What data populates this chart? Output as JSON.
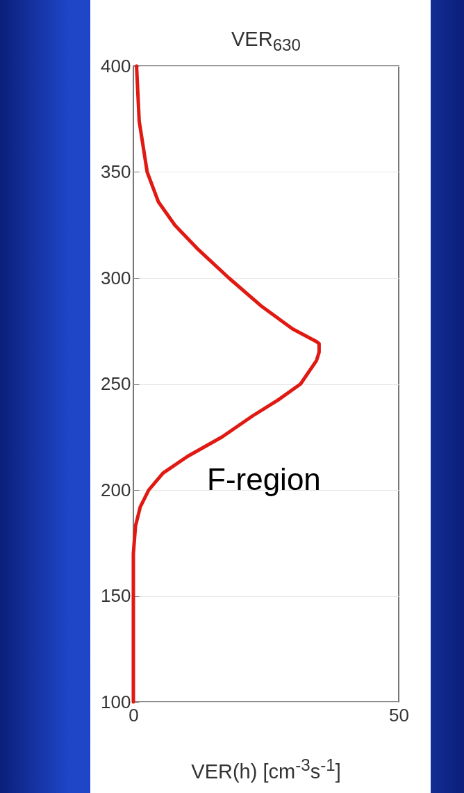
{
  "chart_data": {
    "type": "line",
    "title": "VER$_{630}$",
    "xlabel": "VER(h) [cm$^{-3}$s$^{-1}$]",
    "x": [
      0,
      0,
      0.4,
      1.3,
      2.9,
      5.6,
      10.3,
      16.7,
      22.5,
      27.3,
      31.5,
      34.5,
      35,
      35,
      34.5,
      30,
      24,
      18,
      12,
      7.8,
      4.7,
      2.6,
      1.1,
      0.6
    ],
    "series": [
      {
        "color": "#e01a12",
        "values": [
          100,
          170,
          183,
          192,
          200,
          208,
          216,
          225,
          235,
          242.5,
          250,
          261,
          265,
          269,
          270,
          276,
          287,
          300,
          314,
          325,
          336,
          350,
          374,
          400
        ]
      }
    ],
    "annotations": [
      "F-region"
    ],
    "xlim": [
      0,
      50
    ],
    "xticks": [
      0,
      50
    ],
    "ylim": [
      100,
      400
    ],
    "yticks": [
      100,
      150,
      200,
      250,
      300,
      350,
      400
    ],
    "grid": "y",
    "marker": "none",
    "line_style": "solid"
  }
}
